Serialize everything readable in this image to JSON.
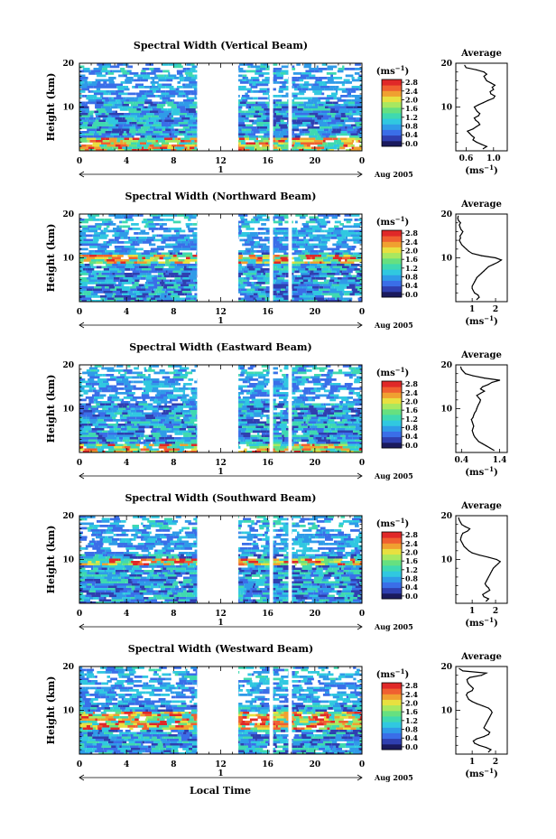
{
  "figure": {
    "shared_xlabel": "Local Time",
    "colorbar_unit": "(ms",
    "colorbar_unit_exp": "−1",
    "avg_unit": "(ms",
    "avg_unit_exp": "−1",
    "palette": [
      "#1a1a5e",
      "#2f3fb0",
      "#3a6ee8",
      "#2f9be8",
      "#30c8e0",
      "#3fd9b0",
      "#66e080",
      "#a8e860",
      "#e8e040",
      "#f0a030",
      "#f06030",
      "#e02828"
    ]
  },
  "chart_data": [
    {
      "type": "heatmap",
      "title": "Spectral Width (Vertical Beam)",
      "ylabel": "Height (km)",
      "ylim": [
        0,
        20
      ],
      "yticks": [
        "20",
        "10"
      ],
      "xticks": [
        "0",
        "4",
        "8",
        "12",
        "16",
        "20",
        "0"
      ],
      "xlim": [
        0,
        24
      ],
      "day_label": "1",
      "month_label": "Aug 2005",
      "gaps": [
        [
          10,
          13.5
        ],
        [
          16.15,
          16.45
        ],
        [
          17.75,
          18.05
        ]
      ],
      "bright_zone_km": [
        0,
        3
      ],
      "colorbar": {
        "ticks": [
          "2.8",
          "2.4",
          "2.0",
          "1.6",
          "1.2",
          "0.8",
          "0.4",
          "0.0"
        ],
        "min": 0,
        "max": 2.8
      },
      "average": {
        "title": "Average",
        "xticks": [
          "0.6",
          "1.0"
        ],
        "xlim": [
          0.45,
          1.2
        ],
        "height_km": [
          0.5,
          1,
          1.5,
          2,
          2.5,
          3,
          3.5,
          4,
          4.5,
          5,
          5.5,
          6,
          6.5,
          7,
          7.5,
          8,
          8.5,
          9,
          9.5,
          10,
          10.5,
          11,
          11.5,
          12,
          12.5,
          13,
          13.5,
          14,
          14.5,
          15,
          15.5,
          16,
          16.5,
          17,
          17.5,
          18,
          18.5,
          19,
          19.5
        ],
        "width_ms": [
          0.85,
          0.9,
          0.82,
          0.75,
          0.7,
          0.72,
          0.68,
          0.65,
          0.62,
          0.7,
          0.75,
          0.8,
          0.78,
          0.74,
          0.72,
          0.78,
          0.8,
          0.76,
          0.74,
          0.72,
          0.78,
          0.85,
          0.92,
          1.0,
          1.02,
          0.96,
          0.95,
          1.0,
          0.98,
          1.02,
          0.96,
          0.9,
          0.88,
          0.86,
          0.9,
          0.86,
          0.75,
          0.6,
          0.58
        ]
      }
    },
    {
      "type": "heatmap",
      "title": "Spectral Width (Northward Beam)",
      "ylabel": "Height (km)",
      "ylim": [
        0,
        20
      ],
      "yticks": [
        "20",
        "10"
      ],
      "xticks": [
        "0",
        "4",
        "8",
        "12",
        "16",
        "20",
        "0"
      ],
      "xlim": [
        0,
        24
      ],
      "day_label": "1",
      "month_label": "Aug 2005",
      "gaps": [
        [
          10,
          13.5
        ],
        [
          16.15,
          16.45
        ],
        [
          17.75,
          18.05
        ]
      ],
      "bright_zone_km": [
        9,
        11
      ],
      "colorbar": {
        "ticks": [
          "2.8",
          "2.4",
          "2.0",
          "1.6",
          "1.2",
          "0.8",
          "0.4",
          "0.0"
        ],
        "min": 0,
        "max": 2.8
      },
      "average": {
        "title": "Average",
        "xticks": [
          "1",
          "2"
        ],
        "xlim": [
          0.3,
          2.5
        ],
        "height_km": [
          0.5,
          1,
          1.5,
          2,
          2.5,
          3,
          3.5,
          4,
          4.5,
          5,
          5.5,
          6,
          6.5,
          7,
          7.5,
          8,
          8.5,
          9,
          9.5,
          10,
          10.5,
          11,
          11.5,
          12,
          12.5,
          13,
          13.5,
          14,
          14.5,
          15,
          15.5,
          16,
          16.5,
          17,
          17.5,
          18,
          18.5,
          19,
          19.5
        ],
        "width_ms": [
          1.2,
          1.3,
          1.25,
          1.1,
          1.05,
          1.0,
          1.0,
          1.05,
          1.1,
          1.15,
          1.2,
          1.3,
          1.4,
          1.5,
          1.6,
          1.7,
          1.9,
          2.1,
          2.25,
          2.0,
          1.4,
          1.0,
          0.85,
          0.75,
          0.65,
          0.55,
          0.5,
          0.45,
          0.5,
          0.48,
          0.55,
          0.6,
          0.52,
          0.48,
          0.45,
          0.5,
          0.42,
          0.38,
          0.4
        ]
      }
    },
    {
      "type": "heatmap",
      "title": "Spectral Width (Eastward Beam)",
      "ylabel": "Height (km)",
      "ylim": [
        0,
        20
      ],
      "yticks": [
        "20",
        "10"
      ],
      "xticks": [
        "0",
        "4",
        "8",
        "12",
        "16",
        "20",
        "0"
      ],
      "xlim": [
        0,
        24
      ],
      "day_label": "1",
      "month_label": "Aug 2005",
      "gaps": [
        [
          10,
          13.5
        ],
        [
          16.15,
          16.45
        ],
        [
          17.75,
          18.05
        ]
      ],
      "bright_zone_km": [
        0,
        2
      ],
      "colorbar": {
        "ticks": [
          "2.8",
          "2.4",
          "2.0",
          "1.6",
          "1.2",
          "0.8",
          "0.4",
          "0.0"
        ],
        "min": 0,
        "max": 2.8
      },
      "average": {
        "title": "Average",
        "xticks": [
          "0.4",
          "1.4"
        ],
        "xlim": [
          0.25,
          1.6
        ],
        "height_km": [
          0.5,
          1,
          1.5,
          2,
          2.5,
          3,
          3.5,
          4,
          4.5,
          5,
          5.5,
          6,
          6.5,
          7,
          7.5,
          8,
          8.5,
          9,
          9.5,
          10,
          10.5,
          11,
          11.5,
          12,
          12.5,
          13,
          13.5,
          14,
          14.5,
          15,
          15.5,
          16,
          16.5,
          17,
          17.5,
          18,
          18.5,
          19,
          19.5
        ],
        "width_ms": [
          1.25,
          1.15,
          1.05,
          0.95,
          0.85,
          0.8,
          0.75,
          0.72,
          0.7,
          0.68,
          0.7,
          0.72,
          0.7,
          0.68,
          0.66,
          0.7,
          0.72,
          0.74,
          0.78,
          0.8,
          0.82,
          0.85,
          0.88,
          0.9,
          0.85,
          0.8,
          0.9,
          1.0,
          0.9,
          0.95,
          1.1,
          1.2,
          1.4,
          1.0,
          0.7,
          0.5,
          0.45,
          0.4,
          0.38
        ]
      }
    },
    {
      "type": "heatmap",
      "title": "Spectral Width (Southward Beam)",
      "ylabel": "Height (km)",
      "ylim": [
        0,
        20
      ],
      "yticks": [
        "20",
        "10"
      ],
      "xticks": [
        "0",
        "4",
        "8",
        "12",
        "16",
        "20",
        "0"
      ],
      "xlim": [
        0,
        24
      ],
      "day_label": "1",
      "month_label": "Aug 2005",
      "gaps": [
        [
          10,
          13.5
        ],
        [
          16.15,
          16.45
        ],
        [
          17.75,
          18.05
        ]
      ],
      "bright_zone_km": [
        9,
        10.5
      ],
      "colorbar": {
        "ticks": [
          "2.8",
          "2.4",
          "2.0",
          "1.6",
          "1.2",
          "0.8",
          "0.4",
          "0.0"
        ],
        "min": 0,
        "max": 2.8
      },
      "average": {
        "title": "Average",
        "xticks": [
          "1",
          "2"
        ],
        "xlim": [
          0.3,
          2.5
        ],
        "height_km": [
          0.5,
          1,
          1.5,
          2,
          2.5,
          3,
          3.5,
          4,
          4.5,
          5,
          5.5,
          6,
          6.5,
          7,
          7.5,
          8,
          8.5,
          9,
          9.5,
          10,
          10.5,
          11,
          11.5,
          12,
          12.5,
          13,
          13.5,
          14,
          14.5,
          15,
          15.5,
          16,
          16.5,
          17,
          17.5,
          18,
          18.5,
          19,
          19.5
        ],
        "width_ms": [
          1.6,
          1.7,
          1.5,
          1.45,
          1.6,
          1.75,
          1.7,
          1.6,
          1.55,
          1.6,
          1.65,
          1.7,
          1.75,
          1.8,
          1.85,
          1.9,
          2.0,
          2.1,
          2.2,
          2.05,
          1.7,
          1.3,
          1.0,
          0.85,
          0.75,
          0.65,
          0.6,
          0.55,
          0.5,
          0.52,
          0.55,
          0.6,
          0.8,
          0.9,
          0.7,
          0.55,
          0.5,
          0.45,
          0.42
        ]
      }
    },
    {
      "type": "heatmap",
      "title": "Spectral Width (Westward Beam)",
      "ylabel": "Height (km)",
      "ylim": [
        0,
        20
      ],
      "yticks": [
        "20",
        "10"
      ],
      "xticks": [
        "0",
        "4",
        "8",
        "12",
        "16",
        "20",
        "0"
      ],
      "xlim": [
        0,
        24
      ],
      "day_label": "1",
      "month_label": "Aug 2005",
      "gaps": [
        [
          10,
          13.5
        ],
        [
          16.15,
          16.45
        ],
        [
          17.75,
          18.05
        ]
      ],
      "bright_zone_km": [
        6,
        10
      ],
      "colorbar": {
        "ticks": [
          "2.8",
          "2.4",
          "2.0",
          "1.6",
          "1.2",
          "0.8",
          "0.4",
          "0.0"
        ],
        "min": 0,
        "max": 2.8
      },
      "average": {
        "title": "Average",
        "xticks": [
          "1",
          "2"
        ],
        "xlim": [
          0.3,
          2.5
        ],
        "height_km": [
          0.5,
          1,
          1.5,
          2,
          2.5,
          3,
          3.5,
          4,
          4.5,
          5,
          5.5,
          6,
          6.5,
          7,
          7.5,
          8,
          8.5,
          9,
          9.5,
          10,
          10.5,
          11,
          11.5,
          12,
          12.5,
          13,
          13.5,
          14,
          14.5,
          15,
          15.5,
          16,
          16.5,
          17,
          17.5,
          18,
          18.5,
          19,
          19.5
        ],
        "width_ms": [
          1.7,
          1.8,
          1.6,
          1.3,
          1.1,
          1.05,
          1.2,
          1.5,
          1.7,
          1.75,
          1.6,
          1.5,
          1.55,
          1.6,
          1.65,
          1.7,
          1.75,
          1.8,
          1.85,
          1.8,
          1.7,
          1.45,
          1.2,
          1.0,
          0.85,
          0.8,
          0.75,
          0.8,
          1.0,
          1.05,
          0.95,
          0.85,
          0.8,
          0.78,
          0.9,
          1.4,
          1.6,
          0.6,
          0.45
        ]
      }
    }
  ]
}
